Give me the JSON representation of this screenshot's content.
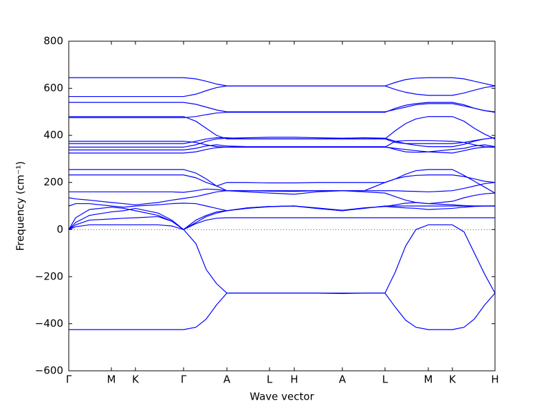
{
  "chart_data": {
    "type": "line",
    "x_label": "Wave vector",
    "y_label": "Frequency (cm⁻¹)",
    "color": "#0000ff",
    "zero_line": true,
    "xlim": [
      0,
      6.2
    ],
    "ylim": [
      -600,
      800
    ],
    "xticks": [
      {
        "value": 0,
        "label": "Γ"
      },
      {
        "value": 0.62,
        "label": "M"
      },
      {
        "value": 0.97,
        "label": "K"
      },
      {
        "value": 1.67,
        "label": "Γ"
      },
      {
        "value": 2.3,
        "label": "A"
      },
      {
        "value": 2.92,
        "label": "L"
      },
      {
        "value": 3.28,
        "label": "H"
      },
      {
        "value": 3.98,
        "label": "A"
      },
      {
        "value": 4.6,
        "label": "L"
      },
      {
        "value": 5.23,
        "label": "M"
      },
      {
        "value": 5.58,
        "label": "K"
      },
      {
        "value": 6.2,
        "label": "H"
      }
    ],
    "yticks": [
      {
        "value": -600,
        "label": "−600"
      },
      {
        "value": -400,
        "label": "−400"
      },
      {
        "value": -200,
        "label": "−200"
      },
      0,
      200,
      400,
      600,
      800
    ],
    "x": [
      0,
      0.1,
      0.3,
      0.62,
      0.8,
      0.97,
      1.3,
      1.5,
      1.67,
      1.85,
      2.0,
      2.15,
      2.3,
      2.6,
      2.92,
      3.28,
      3.6,
      3.98,
      4.3,
      4.6,
      4.75,
      4.9,
      5.05,
      5.23,
      5.58,
      5.75,
      5.9,
      6.05,
      6.2
    ],
    "series": [
      {
        "values": [
          -425,
          -425,
          -425,
          -425,
          -425,
          -425,
          -425,
          -425,
          -425,
          -415,
          -380,
          -320,
          -270,
          -270,
          -270,
          -270,
          -270,
          -272,
          -270,
          -270,
          -330,
          -385,
          -415,
          -425,
          -425,
          -415,
          -380,
          -320,
          -270
        ]
      },
      {
        "values": [
          0,
          12,
          20,
          20,
          20,
          20,
          20,
          15,
          0,
          -60,
          -170,
          -230,
          -270,
          -270,
          -270,
          -270,
          -270,
          -270,
          -270,
          -270,
          -180,
          -70,
          0,
          20,
          20,
          -10,
          -100,
          -190,
          -270
        ]
      },
      {
        "values": [
          0,
          20,
          40,
          45,
          48,
          50,
          55,
          35,
          0,
          25,
          40,
          48,
          50,
          50,
          50,
          50,
          50,
          50,
          50,
          50,
          50,
          50,
          50,
          50,
          50,
          50,
          50,
          50,
          50
        ]
      },
      {
        "values": [
          0,
          30,
          60,
          75,
          80,
          90,
          70,
          40,
          0,
          30,
          55,
          70,
          80,
          92,
          98,
          100,
          90,
          80,
          90,
          100,
          100,
          100,
          100,
          100,
          100,
          100,
          100,
          100,
          100
        ]
      },
      {
        "values": [
          0,
          50,
          85,
          95,
          90,
          80,
          60,
          35,
          0,
          40,
          60,
          75,
          80,
          92,
          98,
          100,
          90,
          80,
          92,
          98,
          95,
          92,
          90,
          85,
          90,
          95,
          98,
          100,
          100
        ]
      },
      {
        "values": [
          100,
          110,
          110,
          100,
          95,
          100,
          105,
          110,
          112,
          110,
          100,
          90,
          80,
          90,
          97,
          100,
          92,
          82,
          92,
          98,
          105,
          112,
          115,
          110,
          105,
          102,
          100,
          100,
          100
        ]
      },
      {
        "values": [
          135,
          130,
          125,
          115,
          110,
          105,
          115,
          125,
          132,
          140,
          150,
          160,
          165,
          160,
          155,
          150,
          160,
          165,
          160,
          155,
          140,
          125,
          115,
          110,
          120,
          135,
          145,
          152,
          155
        ]
      },
      {
        "values": [
          160,
          160,
          160,
          160,
          160,
          160,
          160,
          160,
          158,
          165,
          172,
          170,
          165,
          165,
          163,
          162,
          165,
          165,
          165,
          165,
          165,
          163,
          162,
          160,
          165,
          175,
          185,
          195,
          200
        ]
      },
      {
        "values": [
          232,
          232,
          232,
          232,
          232,
          232,
          232,
          232,
          232,
          220,
          200,
          185,
          200,
          200,
          198,
          198,
          200,
          200,
          200,
          200,
          215,
          225,
          230,
          232,
          232,
          225,
          215,
          205,
          200
        ]
      },
      {
        "values": [
          255,
          255,
          255,
          255,
          255,
          255,
          255,
          255,
          255,
          240,
          215,
          185,
          165,
          165,
          165,
          165,
          165,
          165,
          165,
          200,
          215,
          235,
          250,
          255,
          255,
          230,
          205,
          180,
          155
        ]
      },
      {
        "values": [
          325,
          325,
          325,
          325,
          325,
          325,
          325,
          325,
          325,
          330,
          340,
          348,
          350,
          350,
          350,
          350,
          350,
          350,
          350,
          350,
          345,
          340,
          335,
          330,
          325,
          335,
          345,
          350,
          350
        ]
      },
      {
        "values": [
          338,
          338,
          338,
          338,
          338,
          338,
          338,
          338,
          338,
          345,
          355,
          360,
          355,
          352,
          352,
          352,
          352,
          352,
          352,
          352,
          340,
          330,
          328,
          330,
          340,
          345,
          355,
          360,
          352
        ]
      },
      {
        "values": [
          350,
          350,
          350,
          350,
          350,
          350,
          350,
          350,
          350,
          360,
          375,
          385,
          388,
          390,
          392,
          392,
          390,
          388,
          390,
          388,
          375,
          365,
          358,
          352,
          352,
          362,
          375,
          385,
          390
        ]
      },
      {
        "values": [
          365,
          365,
          365,
          365,
          365,
          365,
          365,
          365,
          365,
          375,
          385,
          390,
          390,
          385,
          385,
          385,
          385,
          385,
          385,
          385,
          370,
          365,
          365,
          365,
          365,
          370,
          378,
          385,
          390
        ]
      },
      {
        "values": [
          375,
          375,
          375,
          375,
          375,
          375,
          375,
          375,
          375,
          370,
          360,
          352,
          350,
          350,
          350,
          350,
          350,
          350,
          350,
          350,
          375,
          378,
          378,
          378,
          375,
          370,
          360,
          352,
          350
        ]
      },
      {
        "values": [
          480,
          480,
          480,
          480,
          480,
          480,
          480,
          480,
          480,
          460,
          430,
          400,
          385,
          385,
          385,
          385,
          385,
          385,
          385,
          385,
          420,
          450,
          470,
          480,
          480,
          460,
          430,
          405,
          385
        ]
      },
      {
        "values": [
          475,
          475,
          475,
          475,
          475,
          475,
          475,
          475,
          475,
          480,
          488,
          495,
          498,
          498,
          498,
          498,
          498,
          498,
          498,
          498,
          515,
          528,
          535,
          540,
          540,
          530,
          515,
          505,
          500
        ]
      },
      {
        "values": [
          540,
          540,
          540,
          540,
          540,
          540,
          540,
          540,
          540,
          532,
          520,
          508,
          500,
          500,
          500,
          500,
          500,
          500,
          500,
          500,
          510,
          520,
          530,
          535,
          535,
          525,
          515,
          505,
          498
        ]
      },
      {
        "values": [
          565,
          565,
          565,
          565,
          565,
          565,
          565,
          565,
          565,
          575,
          590,
          603,
          610,
          610,
          610,
          610,
          610,
          610,
          610,
          610,
          625,
          637,
          643,
          645,
          645,
          640,
          630,
          620,
          610
        ]
      },
      {
        "values": [
          645,
          645,
          645,
          645,
          645,
          645,
          645,
          645,
          645,
          640,
          630,
          618,
          610,
          610,
          610,
          610,
          610,
          610,
          610,
          610,
          595,
          583,
          575,
          570,
          570,
          580,
          592,
          603,
          610
        ]
      }
    ]
  }
}
